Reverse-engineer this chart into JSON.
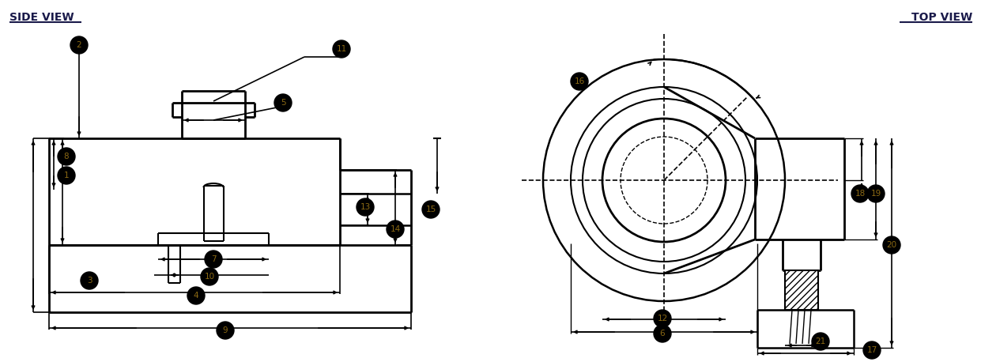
{
  "title_left": "SIDE VIEW",
  "title_right": "TOP VIEW",
  "bg_color": "#ffffff",
  "line_color": "#000000",
  "label_color": "#8B6914",
  "title_color": "#1a1a4a",
  "figsize": [
    12.41,
    4.58
  ],
  "dpi": 100
}
